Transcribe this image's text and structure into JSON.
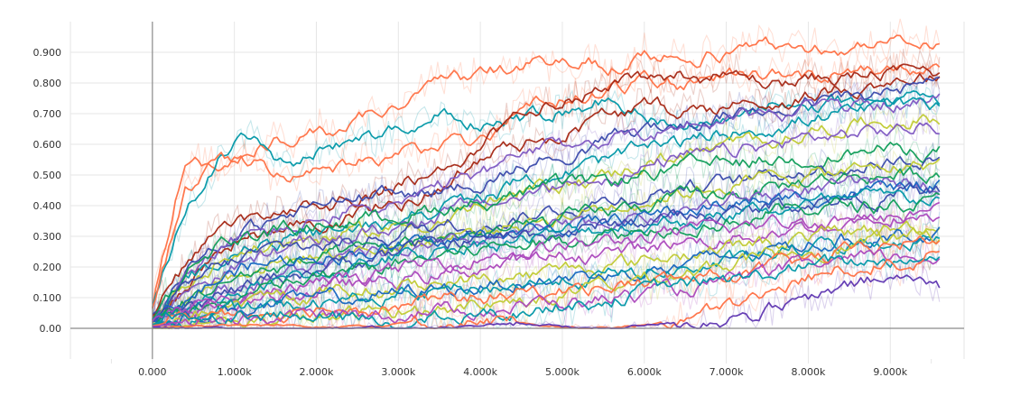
{
  "chart_data": {
    "type": "line",
    "title": "",
    "xlabel": "",
    "ylabel": "",
    "xlim": [
      -1000,
      9900
    ],
    "ylim": [
      -0.1,
      1.0
    ],
    "x_ticks": [
      0,
      1000,
      2000,
      3000,
      4000,
      5000,
      6000,
      7000,
      8000,
      9000
    ],
    "x_tick_labels": [
      "0.000",
      "1.000k",
      "2.000k",
      "3.000k",
      "4.000k",
      "5.000k",
      "6.000k",
      "7.000k",
      "8.000k",
      "9.000k"
    ],
    "y_ticks": [
      0,
      0.1,
      0.2,
      0.3,
      0.4,
      0.5,
      0.6,
      0.7,
      0.8,
      0.9
    ],
    "y_tick_labels": [
      "0.00",
      "0.100",
      "0.200",
      "0.300",
      "0.400",
      "0.500",
      "0.600",
      "0.700",
      "0.800",
      "0.900"
    ],
    "grid": true,
    "legend": "none",
    "x": [
      0,
      400,
      800,
      1200,
      1600,
      2000,
      2400,
      2800,
      3200,
      3600,
      4000,
      4400,
      4800,
      5200,
      5600,
      6000,
      6400,
      6800,
      7200,
      7600,
      8000,
      8400,
      8800,
      9200,
      9600
    ],
    "series": [
      {
        "color": "#ff7043",
        "values": [
          0.08,
          0.55,
          0.52,
          0.58,
          0.62,
          0.63,
          0.66,
          0.71,
          0.76,
          0.8,
          0.82,
          0.85,
          0.86,
          0.87,
          0.86,
          0.88,
          0.88,
          0.9,
          0.9,
          0.92,
          0.92,
          0.92,
          0.93,
          0.93,
          0.92
        ]
      },
      {
        "color": "#0097a7",
        "values": [
          0.06,
          0.4,
          0.55,
          0.63,
          0.53,
          0.58,
          0.62,
          0.64,
          0.68,
          0.7,
          0.66,
          0.68,
          0.7,
          0.72,
          0.76,
          0.7,
          0.68,
          0.66,
          0.7,
          0.73,
          0.72,
          0.74,
          0.75,
          0.76,
          0.76
        ]
      },
      {
        "color": "#ff7043",
        "values": [
          0.05,
          0.45,
          0.55,
          0.55,
          0.5,
          0.5,
          0.52,
          0.55,
          0.58,
          0.6,
          0.62,
          0.7,
          0.74,
          0.76,
          0.78,
          0.8,
          0.8,
          0.82,
          0.82,
          0.83,
          0.83,
          0.84,
          0.84,
          0.84,
          0.82
        ]
      },
      {
        "color": "#a52714",
        "values": [
          0.04,
          0.2,
          0.3,
          0.35,
          0.37,
          0.4,
          0.42,
          0.45,
          0.48,
          0.52,
          0.58,
          0.67,
          0.73,
          0.77,
          0.8,
          0.82,
          0.83,
          0.82,
          0.82,
          0.8,
          0.81,
          0.82,
          0.83,
          0.84,
          0.84
        ]
      },
      {
        "color": "#a52714",
        "values": [
          0.03,
          0.15,
          0.25,
          0.32,
          0.3,
          0.34,
          0.38,
          0.4,
          0.42,
          0.48,
          0.55,
          0.6,
          0.62,
          0.66,
          0.7,
          0.72,
          0.71,
          0.72,
          0.73,
          0.74,
          0.76,
          0.78,
          0.8,
          0.82,
          0.83
        ]
      },
      {
        "color": "#3949ab",
        "values": [
          0.03,
          0.2,
          0.28,
          0.32,
          0.36,
          0.4,
          0.42,
          0.43,
          0.44,
          0.45,
          0.48,
          0.52,
          0.55,
          0.58,
          0.62,
          0.65,
          0.66,
          0.68,
          0.7,
          0.72,
          0.74,
          0.75,
          0.76,
          0.78,
          0.8
        ]
      },
      {
        "color": "#7e57c2",
        "values": [
          0.02,
          0.18,
          0.25,
          0.3,
          0.32,
          0.35,
          0.38,
          0.4,
          0.42,
          0.46,
          0.5,
          0.55,
          0.58,
          0.6,
          0.62,
          0.64,
          0.66,
          0.68,
          0.7,
          0.7,
          0.72,
          0.72,
          0.73,
          0.74,
          0.74
        ]
      },
      {
        "color": "#0097a7",
        "values": [
          0.02,
          0.16,
          0.22,
          0.26,
          0.28,
          0.3,
          0.32,
          0.34,
          0.38,
          0.4,
          0.42,
          0.46,
          0.5,
          0.52,
          0.55,
          0.58,
          0.6,
          0.62,
          0.65,
          0.66,
          0.68,
          0.7,
          0.71,
          0.72,
          0.73
        ]
      },
      {
        "color": "#c0ca33",
        "values": [
          0.02,
          0.15,
          0.22,
          0.26,
          0.28,
          0.3,
          0.3,
          0.32,
          0.34,
          0.36,
          0.4,
          0.42,
          0.46,
          0.48,
          0.5,
          0.54,
          0.56,
          0.58,
          0.6,
          0.62,
          0.64,
          0.66,
          0.67,
          0.68,
          0.69
        ]
      },
      {
        "color": "#7e57c2",
        "values": [
          0.02,
          0.12,
          0.18,
          0.22,
          0.26,
          0.28,
          0.3,
          0.32,
          0.35,
          0.38,
          0.4,
          0.42,
          0.45,
          0.48,
          0.5,
          0.52,
          0.55,
          0.56,
          0.58,
          0.6,
          0.62,
          0.63,
          0.64,
          0.65,
          0.66
        ]
      },
      {
        "color": "#0f9d58",
        "values": [
          0.02,
          0.18,
          0.28,
          0.3,
          0.32,
          0.34,
          0.35,
          0.36,
          0.38,
          0.4,
          0.41,
          0.43,
          0.45,
          0.47,
          0.48,
          0.5,
          0.52,
          0.53,
          0.54,
          0.55,
          0.56,
          0.57,
          0.58,
          0.58,
          0.58
        ]
      },
      {
        "color": "#3949ab",
        "values": [
          0.02,
          0.12,
          0.2,
          0.24,
          0.26,
          0.27,
          0.28,
          0.3,
          0.32,
          0.34,
          0.35,
          0.36,
          0.38,
          0.4,
          0.42,
          0.44,
          0.46,
          0.47,
          0.48,
          0.5,
          0.52,
          0.53,
          0.54,
          0.55,
          0.56
        ]
      },
      {
        "color": "#c0ca33",
        "values": [
          0.02,
          0.1,
          0.16,
          0.2,
          0.22,
          0.24,
          0.25,
          0.26,
          0.28,
          0.3,
          0.32,
          0.34,
          0.36,
          0.38,
          0.4,
          0.42,
          0.44,
          0.46,
          0.48,
          0.49,
          0.5,
          0.51,
          0.52,
          0.53,
          0.54
        ]
      },
      {
        "color": "#0f9d58",
        "values": [
          0.02,
          0.08,
          0.14,
          0.18,
          0.2,
          0.22,
          0.24,
          0.26,
          0.28,
          0.3,
          0.31,
          0.32,
          0.34,
          0.36,
          0.38,
          0.4,
          0.42,
          0.43,
          0.44,
          0.46,
          0.48,
          0.49,
          0.5,
          0.5,
          0.51
        ]
      },
      {
        "color": "#7e57c2",
        "values": [
          0.02,
          0.08,
          0.12,
          0.15,
          0.18,
          0.2,
          0.22,
          0.24,
          0.25,
          0.26,
          0.28,
          0.3,
          0.32,
          0.33,
          0.35,
          0.36,
          0.38,
          0.4,
          0.42,
          0.44,
          0.45,
          0.46,
          0.47,
          0.48,
          0.48
        ]
      },
      {
        "color": "#1565c0",
        "values": [
          0.02,
          0.1,
          0.16,
          0.2,
          0.22,
          0.24,
          0.25,
          0.26,
          0.27,
          0.28,
          0.3,
          0.31,
          0.32,
          0.34,
          0.35,
          0.37,
          0.38,
          0.4,
          0.41,
          0.42,
          0.43,
          0.44,
          0.45,
          0.46,
          0.46
        ]
      },
      {
        "color": "#3949ab",
        "values": [
          0.02,
          0.06,
          0.1,
          0.14,
          0.17,
          0.2,
          0.22,
          0.24,
          0.26,
          0.28,
          0.29,
          0.3,
          0.31,
          0.32,
          0.34,
          0.35,
          0.36,
          0.37,
          0.38,
          0.4,
          0.41,
          0.42,
          0.43,
          0.44,
          0.44
        ]
      },
      {
        "color": "#0097a7",
        "values": [
          0.02,
          0.06,
          0.1,
          0.13,
          0.15,
          0.18,
          0.2,
          0.22,
          0.24,
          0.26,
          0.28,
          0.29,
          0.3,
          0.32,
          0.33,
          0.34,
          0.35,
          0.36,
          0.38,
          0.39,
          0.4,
          0.41,
          0.42,
          0.42,
          0.43
        ]
      },
      {
        "color": "#0f9d58",
        "values": [
          0.02,
          0.05,
          0.08,
          0.11,
          0.14,
          0.16,
          0.18,
          0.2,
          0.22,
          0.24,
          0.26,
          0.27,
          0.28,
          0.3,
          0.31,
          0.32,
          0.34,
          0.35,
          0.36,
          0.38,
          0.39,
          0.4,
          0.4,
          0.41,
          0.41
        ]
      },
      {
        "color": "#ab47bc",
        "values": [
          0.02,
          0.05,
          0.08,
          0.1,
          0.12,
          0.14,
          0.16,
          0.18,
          0.2,
          0.22,
          0.24,
          0.25,
          0.26,
          0.27,
          0.28,
          0.3,
          0.31,
          0.32,
          0.33,
          0.34,
          0.35,
          0.36,
          0.37,
          0.38,
          0.38
        ]
      },
      {
        "color": "#ab47bc",
        "values": [
          0.02,
          0.05,
          0.07,
          0.09,
          0.11,
          0.12,
          0.14,
          0.15,
          0.16,
          0.18,
          0.2,
          0.21,
          0.22,
          0.24,
          0.25,
          0.26,
          0.28,
          0.29,
          0.3,
          0.32,
          0.33,
          0.34,
          0.35,
          0.36,
          0.36
        ]
      },
      {
        "color": "#c0ca33",
        "values": [
          0.01,
          0.04,
          0.06,
          0.08,
          0.1,
          0.11,
          0.12,
          0.13,
          0.14,
          0.15,
          0.16,
          0.17,
          0.18,
          0.2,
          0.21,
          0.22,
          0.24,
          0.26,
          0.27,
          0.28,
          0.3,
          0.31,
          0.32,
          0.33,
          0.34
        ]
      },
      {
        "color": "#1565c0",
        "values": [
          0.01,
          0.04,
          0.06,
          0.07,
          0.08,
          0.09,
          0.1,
          0.11,
          0.12,
          0.13,
          0.14,
          0.15,
          0.16,
          0.17,
          0.18,
          0.19,
          0.2,
          0.22,
          0.24,
          0.26,
          0.28,
          0.29,
          0.3,
          0.31,
          0.32
        ]
      },
      {
        "color": "#0097a7",
        "values": [
          0.01,
          0.03,
          0.05,
          0.06,
          0.07,
          0.08,
          0.09,
          0.1,
          0.11,
          0.12,
          0.13,
          0.14,
          0.15,
          0.16,
          0.17,
          0.18,
          0.19,
          0.2,
          0.22,
          0.24,
          0.26,
          0.27,
          0.28,
          0.29,
          0.3
        ]
      },
      {
        "color": "#c0ca33",
        "values": [
          0.0,
          0.01,
          0.02,
          0.02,
          0.03,
          0.03,
          0.04,
          0.05,
          0.06,
          0.07,
          0.08,
          0.09,
          0.1,
          0.12,
          0.14,
          0.16,
          0.18,
          0.2,
          0.22,
          0.24,
          0.26,
          0.27,
          0.28,
          0.29,
          0.3
        ]
      },
      {
        "color": "#ff7043",
        "values": [
          0.01,
          0.04,
          0.05,
          0.06,
          0.06,
          0.07,
          0.07,
          0.08,
          0.08,
          0.09,
          0.1,
          0.11,
          0.12,
          0.13,
          0.14,
          0.15,
          0.16,
          0.17,
          0.18,
          0.2,
          0.22,
          0.24,
          0.26,
          0.28,
          0.28
        ]
      },
      {
        "color": "#ab47bc",
        "values": [
          0.01,
          0.02,
          0.03,
          0.03,
          0.04,
          0.04,
          0.05,
          0.05,
          0.06,
          0.06,
          0.07,
          0.07,
          0.08,
          0.09,
          0.1,
          0.11,
          0.12,
          0.14,
          0.16,
          0.18,
          0.2,
          0.21,
          0.22,
          0.23,
          0.24
        ]
      },
      {
        "color": "#0097a7",
        "values": [
          0.01,
          0.04,
          0.05,
          0.05,
          0.04,
          0.03,
          0.03,
          0.02,
          0.02,
          0.03,
          0.04,
          0.05,
          0.07,
          0.08,
          0.1,
          0.12,
          0.14,
          0.15,
          0.16,
          0.18,
          0.2,
          0.21,
          0.22,
          0.23,
          0.24
        ]
      },
      {
        "color": "#ff7043",
        "values": [
          0.0,
          0.01,
          0.01,
          0.01,
          0.01,
          0.01,
          0.01,
          0.01,
          0.02,
          0.02,
          0.03,
          0.02,
          0.0,
          0.0,
          0.0,
          0.01,
          0.03,
          0.05,
          0.08,
          0.12,
          0.16,
          0.19,
          0.21,
          0.22,
          0.24
        ]
      },
      {
        "color": "#5e35b1",
        "values": [
          0.0,
          0.0,
          0.0,
          0.0,
          0.0,
          0.0,
          0.0,
          0.0,
          0.0,
          0.0,
          0.01,
          0.02,
          0.01,
          0.0,
          0.0,
          0.01,
          0.02,
          0.03,
          0.04,
          0.06,
          0.09,
          0.12,
          0.15,
          0.16,
          0.14
        ]
      }
    ]
  }
}
